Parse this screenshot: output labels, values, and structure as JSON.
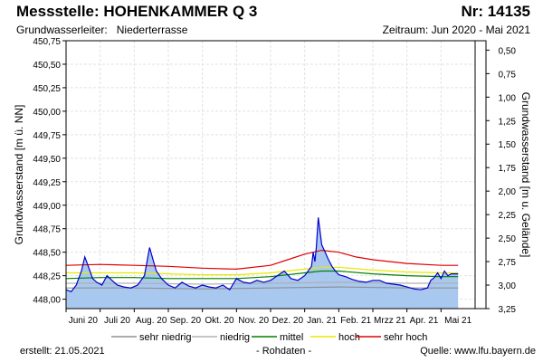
{
  "header": {
    "title": "Messstelle: HOHENKAMMER Q 3",
    "nr": "Nr: 14135",
    "aquifer_label": "Grundwasserleiter:",
    "aquifer_value": "Niederterrasse",
    "period": "Zeitraum: Jun 2020 - Mai 2021"
  },
  "footer": {
    "created": "erstellt:  21.05.2021",
    "raw": "- Rohdaten -",
    "source": "Quelle: www.lfu.bayern.de"
  },
  "chart_data": {
    "type": "line",
    "ylabel_left": "Grundwasserstand [m ü. NN]",
    "ylabel_right": "Grundwasserstand [m u. Gelände]",
    "ylim_left": [
      447.9,
      450.75
    ],
    "ylim_right": [
      3.25,
      0.4
    ],
    "left_ticks": [
      "448,00",
      "448,25",
      "448,50",
      "448,75",
      "449,00",
      "449,25",
      "449,50",
      "449,75",
      "450,00",
      "450,25",
      "450,50",
      "450,75"
    ],
    "right_ticks": [
      "0,50",
      "0,75",
      "1,00",
      "1,25",
      "1,50",
      "1,75",
      "2,00",
      "2,25",
      "2,50",
      "2,75",
      "3,00",
      "3,25"
    ],
    "months": [
      "Juni 20",
      "Juli 20",
      "Aug. 20",
      "Sep. 20",
      "Okt. 20",
      "Nov. 20",
      "Dez. 20",
      "Jan. 21",
      "Feb. 21",
      "Mrzz 21",
      "Apr. 21",
      "Mai 21"
    ],
    "grid": true,
    "legend_position": "bottom",
    "legend": [
      {
        "name": "sehr niedrig",
        "color": "#909090"
      },
      {
        "name": "niedrig",
        "color": "#b0b0b0"
      },
      {
        "name": "mittel",
        "color": "#008000"
      },
      {
        "name": "hoch",
        "color": "#e8e800"
      },
      {
        "name": "sehr hoch",
        "color": "#e00000"
      }
    ],
    "colors": {
      "measured": "#0000cc",
      "fill": "#a8c8f0"
    },
    "measured": {
      "x": [
        0,
        0.15,
        0.3,
        0.45,
        0.55,
        0.62,
        0.7,
        0.78,
        0.9,
        1.05,
        1.2,
        1.35,
        1.5,
        1.7,
        1.9,
        2.1,
        2.3,
        2.45,
        2.55,
        2.65,
        2.8,
        3.0,
        3.2,
        3.4,
        3.6,
        3.8,
        4.0,
        4.2,
        4.4,
        4.6,
        4.8,
        5.0,
        5.2,
        5.4,
        5.6,
        5.8,
        6.0,
        6.2,
        6.4,
        6.6,
        6.8,
        7.0,
        7.2,
        7.25,
        7.3,
        7.34,
        7.4,
        7.5,
        7.6,
        7.7,
        7.8,
        7.9,
        8.0,
        8.2,
        8.4,
        8.6,
        8.8,
        9.0,
        9.2,
        9.4,
        9.6,
        9.8,
        10.0,
        10.2,
        10.4,
        10.6,
        10.7,
        10.8,
        10.9,
        11.0,
        11.1,
        11.2,
        11.3,
        11.5
      ],
      "y": [
        448.1,
        448.08,
        448.15,
        448.3,
        448.45,
        448.38,
        448.3,
        448.22,
        448.18,
        448.15,
        448.25,
        448.2,
        448.15,
        448.13,
        448.12,
        448.15,
        448.25,
        448.55,
        448.42,
        448.3,
        448.22,
        448.15,
        448.12,
        448.18,
        448.14,
        448.12,
        448.15,
        448.13,
        448.12,
        448.15,
        448.1,
        448.22,
        448.18,
        448.17,
        448.2,
        448.18,
        448.2,
        448.25,
        448.3,
        448.22,
        448.2,
        448.25,
        448.35,
        448.5,
        448.4,
        448.55,
        448.87,
        448.58,
        448.5,
        448.42,
        448.35,
        448.3,
        448.26,
        448.24,
        448.21,
        448.19,
        448.18,
        448.2,
        448.2,
        448.17,
        448.16,
        448.15,
        448.13,
        448.11,
        448.1,
        448.12,
        448.2,
        448.23,
        448.28,
        448.22,
        448.3,
        448.25,
        448.27,
        448.27
      ]
    },
    "series": [
      {
        "name": "sehr hoch",
        "color": "#e00000",
        "x": [
          0,
          1,
          2,
          3,
          4,
          5,
          6,
          6.5,
          7,
          7.5,
          8,
          8.5,
          9,
          10,
          11,
          11.5
        ],
        "y": [
          448.36,
          448.37,
          448.36,
          448.35,
          448.33,
          448.32,
          448.36,
          448.42,
          448.48,
          448.52,
          448.5,
          448.45,
          448.42,
          448.38,
          448.36,
          448.36
        ]
      },
      {
        "name": "hoch",
        "color": "#e8e800",
        "x": [
          0,
          1,
          2,
          3,
          4,
          5,
          6,
          7,
          7.5,
          8,
          9,
          10,
          11,
          11.5
        ],
        "y": [
          448.28,
          448.28,
          448.28,
          448.27,
          448.26,
          448.26,
          448.28,
          448.32,
          448.34,
          448.34,
          448.31,
          448.29,
          448.28,
          448.28
        ]
      },
      {
        "name": "mittel",
        "color": "#008000",
        "x": [
          0,
          1,
          2,
          3,
          4,
          5,
          6,
          7,
          7.5,
          8,
          9,
          10,
          11,
          11.5
        ],
        "y": [
          448.22,
          448.23,
          448.23,
          448.22,
          448.22,
          448.22,
          448.24,
          448.28,
          448.3,
          448.3,
          448.27,
          448.25,
          448.24,
          448.24
        ]
      },
      {
        "name": "niedrig",
        "color": "#b0b0b0",
        "x": [
          0,
          2,
          4,
          6,
          8,
          10,
          11.5
        ],
        "y": [
          448.17,
          448.17,
          448.16,
          448.17,
          448.18,
          448.17,
          448.17
        ]
      },
      {
        "name": "sehr niedrig",
        "color": "#909090",
        "x": [
          0,
          2,
          4,
          6,
          8,
          10,
          11.5
        ],
        "y": [
          448.12,
          448.12,
          448.11,
          448.12,
          448.13,
          448.12,
          448.12
        ]
      }
    ]
  }
}
